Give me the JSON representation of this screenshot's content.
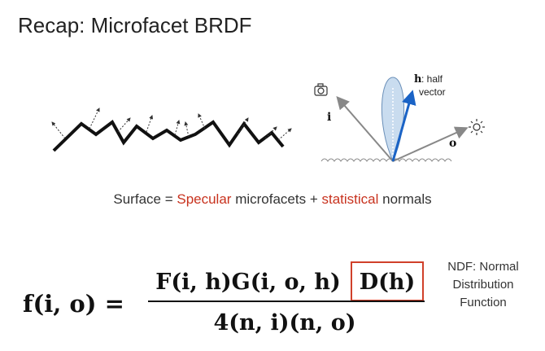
{
  "header": {
    "title": "Recap: Microfacet BRDF"
  },
  "diagram": {
    "h_label": "h",
    "h_text": ": half",
    "h_text2": "vector",
    "i_label": "i",
    "o_label": "o"
  },
  "caption": [
    "Surface = ",
    "Specular",
    " microfacets + ",
    "statistical",
    " normals"
  ],
  "formula": {
    "lhs": "f(i, o) =",
    "numerator": "F(i, h)G(i, o, h)",
    "highlight": "D(h)",
    "denominator": "4(n, i)(n, o)"
  },
  "note": [
    "NDF: Normal",
    "Distribution",
    "Function"
  ]
}
